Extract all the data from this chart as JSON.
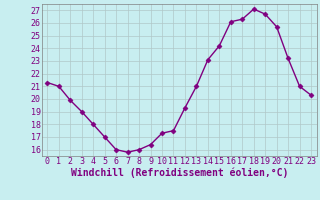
{
  "x": [
    0,
    1,
    2,
    3,
    4,
    5,
    6,
    7,
    8,
    9,
    10,
    11,
    12,
    13,
    14,
    15,
    16,
    17,
    18,
    19,
    20,
    21,
    22,
    23
  ],
  "y": [
    21.3,
    21.0,
    19.9,
    19.0,
    18.0,
    17.0,
    16.0,
    15.8,
    16.0,
    16.4,
    17.3,
    17.5,
    19.3,
    21.0,
    23.1,
    24.2,
    26.1,
    26.3,
    27.1,
    26.7,
    25.7,
    23.2,
    21.0,
    20.3
  ],
  "line_color": "#800080",
  "marker": "D",
  "marker_size": 2.5,
  "bg_color": "#c8eef0",
  "grid_color": "#b0c8c8",
  "ylim": [
    15.5,
    27.5
  ],
  "yticks": [
    16,
    17,
    18,
    19,
    20,
    21,
    22,
    23,
    24,
    25,
    26,
    27
  ],
  "xticks": [
    0,
    1,
    2,
    3,
    4,
    5,
    6,
    7,
    8,
    9,
    10,
    11,
    12,
    13,
    14,
    15,
    16,
    17,
    18,
    19,
    20,
    21,
    22,
    23
  ],
  "xlabel": "Windchill (Refroidissement éolien,°C)",
  "xlabel_fontsize": 7,
  "tick_fontsize": 6,
  "line_width": 1.0
}
